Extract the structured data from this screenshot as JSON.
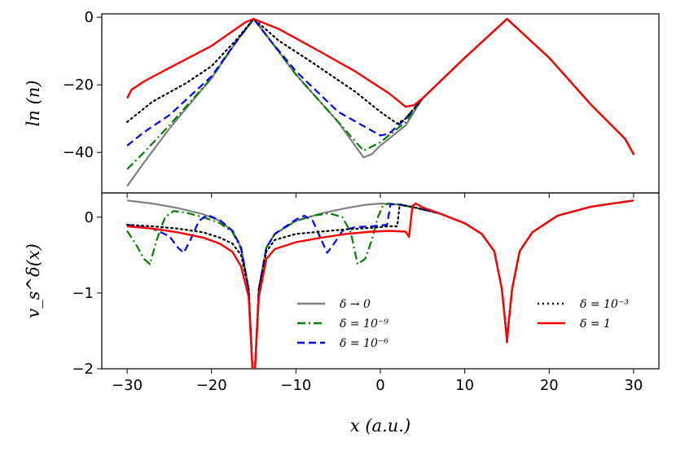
{
  "chart_data": {
    "type": "line",
    "xlabel": "x (a.u.)",
    "xlim": [
      -33,
      33
    ],
    "xticks": [
      -30,
      -20,
      -10,
      0,
      10,
      20,
      30
    ],
    "xtick_labels": [
      "−30",
      "−20",
      "−10",
      "0",
      "10",
      "20",
      "30"
    ],
    "top_panel": {
      "ylabel": "ln (n)",
      "ylim": [
        -52,
        1
      ],
      "yticks": [
        0,
        -20,
        -40
      ],
      "ytick_labels": [
        "0",
        "−20",
        "−40"
      ],
      "series": [
        {
          "name": "δ → 0",
          "color": "#808080",
          "style": "solid",
          "x": [
            -30,
            -28,
            -25,
            -20,
            -17,
            -15,
            -13,
            -10,
            -5,
            -2,
            -1,
            0,
            3,
            5,
            10,
            15,
            20,
            25,
            29,
            30
          ],
          "y": [
            -50,
            -43,
            -33,
            -18,
            -7,
            -0.5,
            -7,
            -17,
            -31,
            -41.5,
            -40.5,
            -38,
            -32,
            -24,
            -12,
            -0.5,
            -12,
            -26,
            -36,
            -40.5
          ]
        },
        {
          "name": "δ = 10⁻⁹",
          "color": "#008000",
          "style": "dashdot",
          "x": [
            -30,
            -28,
            -25,
            -20,
            -17,
            -15,
            -13,
            -10,
            -5,
            -2,
            0,
            3,
            5,
            10,
            15,
            20,
            25,
            29,
            30
          ],
          "y": [
            -45,
            -40,
            -32,
            -18,
            -7,
            -0.5,
            -7,
            -17,
            -31,
            -39.5,
            -37,
            -31,
            -24,
            -12,
            -0.5,
            -12,
            -26,
            -36,
            -40.5
          ]
        },
        {
          "name": "δ = 10⁻⁶",
          "color": "#0000ff",
          "style": "dashed",
          "x": [
            -30,
            -28,
            -25,
            -20,
            -17,
            -15,
            -13,
            -10,
            -5,
            0,
            1,
            3,
            5,
            10,
            15,
            20,
            25,
            29,
            30
          ],
          "y": [
            -38,
            -34,
            -29,
            -17.5,
            -7,
            -0.5,
            -7,
            -16,
            -28,
            -35,
            -34.5,
            -30,
            -24,
            -12,
            -0.5,
            -12,
            -26,
            -36,
            -40.5
          ]
        },
        {
          "name": "δ = 10⁻³",
          "color": "#000000",
          "style": "dotted",
          "x": [
            -30,
            -27,
            -23,
            -20,
            -17,
            -15,
            -12,
            -8,
            -3,
            0,
            2,
            3,
            5,
            10,
            15,
            20,
            25,
            29,
            30
          ],
          "y": [
            -31,
            -25,
            -19.5,
            -14.5,
            -6.5,
            -0.5,
            -7,
            -13.5,
            -22,
            -28,
            -31.5,
            -30,
            -24,
            -12,
            -0.5,
            -12,
            -26,
            -36,
            -40.5
          ]
        },
        {
          "name": "δ = 1",
          "color": "#ff0000",
          "style": "solid",
          "x": [
            -30,
            -29.5,
            -28,
            -25,
            -20,
            -16,
            -15,
            -12,
            -8,
            -3,
            1,
            3,
            4,
            5,
            10,
            15,
            20,
            25,
            29,
            30
          ],
          "y": [
            -24,
            -21.5,
            -19,
            -15,
            -8.5,
            -1.5,
            -0.5,
            -3.5,
            -9,
            -16,
            -22.5,
            -26.5,
            -26,
            -24,
            -12,
            -0.5,
            -12,
            -26,
            -36,
            -40.5
          ]
        }
      ]
    },
    "bottom_panel": {
      "ylabel": "v_s^δ(x)",
      "ylim": [
        -2,
        0.32
      ],
      "yticks": [
        0,
        -1,
        -2
      ],
      "ytick_labels": [
        "0",
        "−1",
        "−2"
      ],
      "legend": [
        {
          "label": "δ → 0",
          "color": "#808080",
          "style": "solid"
        },
        {
          "label": "δ = 10⁻⁹",
          "color": "#008000",
          "style": "dashdot"
        },
        {
          "label": "δ = 10⁻⁶",
          "color": "#0000ff",
          "style": "dashed"
        },
        {
          "label": "δ = 10⁻³",
          "color": "#000000",
          "style": "dotted"
        },
        {
          "label": "δ = 1",
          "color": "#ff0000",
          "style": "solid"
        }
      ],
      "series": [
        {
          "name": "δ → 0",
          "color": "#808080",
          "style": "solid",
          "x": [
            -30,
            -27,
            -24,
            -21,
            -19,
            -17.5,
            -16.5,
            -15.6,
            -15.15,
            -14.85,
            -14.4,
            -13.5,
            -12.5,
            -10,
            -7,
            -4,
            -2,
            0,
            2,
            4,
            7,
            10,
            12,
            13.5,
            14.4,
            14.85,
            15,
            15.15,
            15.6,
            16.5,
            18,
            21,
            25,
            30
          ],
          "y": [
            0.22,
            0.18,
            0.12,
            0.04,
            -0.05,
            -0.18,
            -0.4,
            -0.95,
            -2,
            -2,
            -0.95,
            -0.4,
            -0.22,
            -0.05,
            0.05,
            0.12,
            0.16,
            0.18,
            0.17,
            0.13,
            0.05,
            -0.08,
            -0.22,
            -0.45,
            -0.95,
            -1.45,
            -1.65,
            -1.45,
            -0.95,
            -0.45,
            -0.2,
            0.02,
            0.14,
            0.22
          ]
        },
        {
          "name": "δ = 10⁻⁹",
          "color": "#008000",
          "style": "dashdot",
          "x": [
            -30,
            -29,
            -28,
            -27.3,
            -26.5,
            -25.5,
            -24.5,
            -23,
            -21,
            -19,
            -17.5,
            -16.5,
            -15.6,
            -15.15,
            -14.85,
            -14.4,
            -13.5,
            -12.5,
            -10,
            -8,
            -6,
            -4.5,
            -3.5,
            -2.7,
            -1.8,
            -1,
            -0.3,
            0.3,
            1,
            2,
            4,
            7,
            10,
            12,
            13.5,
            14.4,
            14.85,
            15,
            15.15,
            15.6,
            16.5,
            18,
            21,
            25,
            30
          ],
          "y": [
            -0.18,
            -0.35,
            -0.55,
            -0.62,
            -0.3,
            0.0,
            0.08,
            0.06,
            0.0,
            -0.08,
            -0.2,
            -0.42,
            -0.95,
            -2,
            -2,
            -0.95,
            -0.4,
            -0.22,
            -0.05,
            0.02,
            0.05,
            0.0,
            -0.2,
            -0.62,
            -0.55,
            -0.3,
            0.0,
            0.15,
            0.18,
            0.17,
            0.13,
            0.05,
            -0.08,
            -0.22,
            -0.45,
            -0.95,
            -1.45,
            -1.65,
            -1.45,
            -0.95,
            -0.45,
            -0.2,
            0.02,
            0.14,
            0.22
          ]
        },
        {
          "name": "δ = 10⁻⁶",
          "color": "#0000ff",
          "style": "dashed",
          "x": [
            -30,
            -27,
            -25,
            -24,
            -23.3,
            -22.5,
            -21.5,
            -20.5,
            -19,
            -17.5,
            -16.5,
            -15.6,
            -15.15,
            -14.85,
            -14.4,
            -13.5,
            -12.5,
            -10,
            -9,
            -8,
            -7,
            -6.3,
            -5.5,
            -4.5,
            -3,
            -1,
            0.8,
            1.2,
            2,
            4,
            7,
            10,
            12,
            13.5,
            14.4,
            14.85,
            15,
            15.15,
            15.6,
            16.5,
            18,
            21,
            25,
            30
          ],
          "y": [
            -0.1,
            -0.15,
            -0.25,
            -0.4,
            -0.47,
            -0.3,
            -0.05,
            0.03,
            -0.04,
            -0.18,
            -0.4,
            -0.95,
            -2,
            -2,
            -0.95,
            -0.4,
            -0.22,
            -0.03,
            0.02,
            -0.05,
            -0.3,
            -0.47,
            -0.35,
            -0.18,
            -0.13,
            -0.12,
            -0.1,
            0.17,
            0.17,
            0.13,
            0.05,
            -0.08,
            -0.22,
            -0.45,
            -0.95,
            -1.45,
            -1.65,
            -1.45,
            -0.95,
            -0.45,
            -0.2,
            0.02,
            0.14,
            0.22
          ]
        },
        {
          "name": "δ = 10⁻³",
          "color": "#000000",
          "style": "dotted",
          "x": [
            -30,
            -27,
            -24,
            -21,
            -19,
            -17.5,
            -16.5,
            -15.6,
            -15.15,
            -14.85,
            -14.4,
            -13.5,
            -12.5,
            -10,
            -7,
            -4,
            -1,
            1,
            2,
            2.3,
            4,
            7,
            10,
            12,
            13.5,
            14.4,
            14.85,
            15,
            15.15,
            15.6,
            16.5,
            18,
            21,
            25,
            30
          ],
          "y": [
            -0.1,
            -0.12,
            -0.15,
            -0.2,
            -0.27,
            -0.35,
            -0.5,
            -0.95,
            -2,
            -2,
            -0.95,
            -0.45,
            -0.3,
            -0.22,
            -0.19,
            -0.16,
            -0.14,
            -0.12,
            -0.12,
            0.17,
            0.13,
            0.05,
            -0.08,
            -0.22,
            -0.45,
            -0.95,
            -1.45,
            -1.65,
            -1.45,
            -0.95,
            -0.45,
            -0.2,
            0.02,
            0.14,
            0.22
          ]
        },
        {
          "name": "δ = 1",
          "color": "#ff0000",
          "style": "solid",
          "x": [
            -30,
            -27,
            -24,
            -21,
            -19,
            -17.5,
            -16.5,
            -15.6,
            -15.15,
            -14.85,
            -14.4,
            -13.5,
            -12.5,
            -10,
            -7,
            -4,
            -1,
            1,
            3,
            3.4,
            3.8,
            4.2,
            5,
            7,
            10,
            12,
            13.5,
            14.4,
            14.85,
            15,
            15.15,
            15.6,
            16.5,
            18,
            21,
            25,
            30
          ],
          "y": [
            -0.12,
            -0.15,
            -0.2,
            -0.27,
            -0.35,
            -0.46,
            -0.65,
            -1.05,
            -2,
            -2,
            -1.05,
            -0.55,
            -0.42,
            -0.33,
            -0.27,
            -0.22,
            -0.19,
            -0.18,
            -0.19,
            -0.26,
            0.15,
            0.18,
            0.13,
            0.05,
            -0.08,
            -0.22,
            -0.45,
            -0.95,
            -1.45,
            -1.65,
            -1.45,
            -0.95,
            -0.45,
            -0.2,
            0.02,
            0.14,
            0.22
          ]
        }
      ]
    }
  }
}
